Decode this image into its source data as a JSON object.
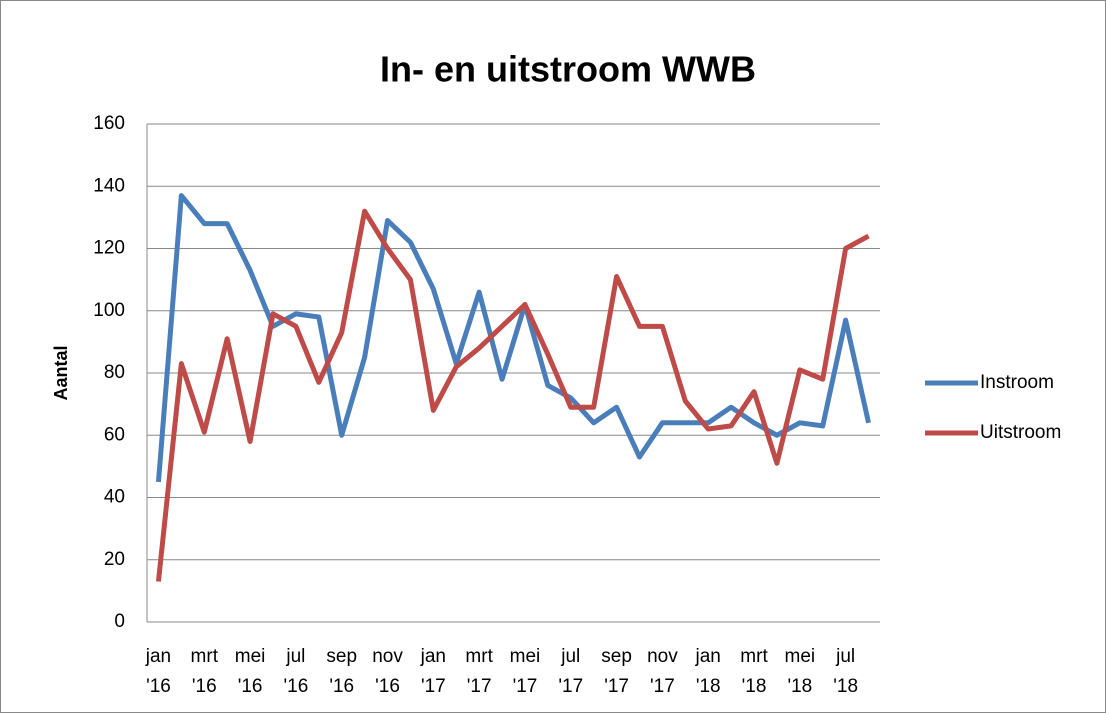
{
  "chart_data": {
    "type": "line",
    "title": "In- en uitstroom WWB",
    "ylabel": "Aantal",
    "categories": [
      "jan '16",
      null,
      "mrt '16",
      null,
      "mei '16",
      null,
      "jul '16",
      null,
      "sep '16",
      null,
      "nov '16",
      null,
      "jan '17",
      null,
      "mrt '17",
      null,
      "mei '17",
      null,
      "jul '17",
      null,
      "sep '17",
      null,
      "nov '17",
      null,
      "jan '18",
      null,
      "mrt '18",
      null,
      "mei '18",
      null,
      "jul '18",
      null
    ],
    "series": [
      {
        "name": "Instroom",
        "color": "#4a7ebb",
        "values": [
          45,
          137,
          128,
          128,
          113,
          95,
          99,
          98,
          60,
          85,
          129,
          122,
          107,
          83,
          106,
          78,
          102,
          76,
          72,
          64,
          69,
          53,
          64,
          64,
          64,
          69,
          64,
          60,
          64,
          63,
          97,
          64
        ]
      },
      {
        "name": "Uitstroom",
        "color": "#be4b48",
        "values": [
          13,
          83,
          61,
          91,
          58,
          99,
          95,
          77,
          93,
          132,
          120,
          110,
          68,
          82,
          88,
          95,
          102,
          86,
          69,
          69,
          111,
          95,
          95,
          71,
          62,
          63,
          74,
          51,
          81,
          78,
          120,
          124
        ]
      }
    ],
    "ylim": [
      0,
      160
    ],
    "yticks": [
      0,
      20,
      40,
      60,
      80,
      100,
      120,
      140,
      160
    ],
    "grid": true,
    "legend": "right"
  }
}
